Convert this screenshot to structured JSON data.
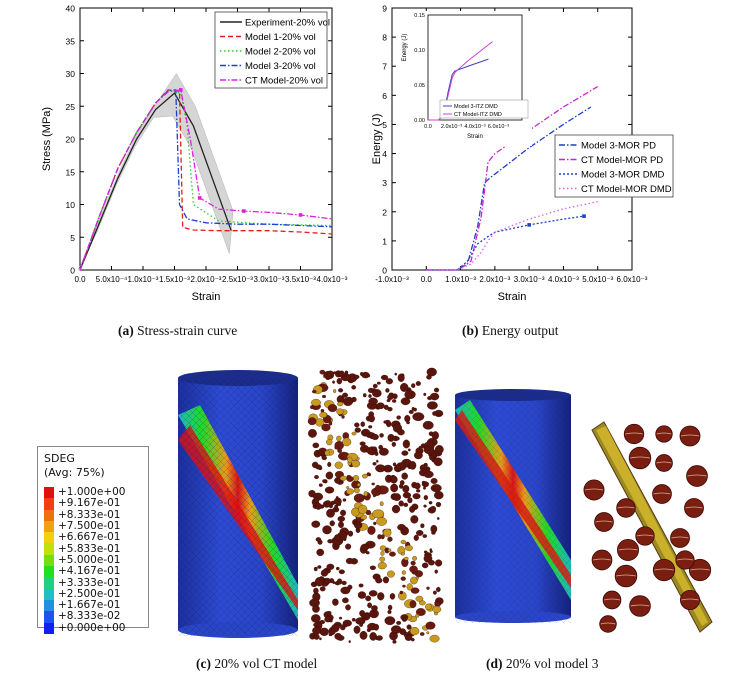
{
  "chart_data": [
    {
      "type": "line",
      "title": "",
      "xlabel": "Strain",
      "ylabel": "Stress (MPa)",
      "xlim": [
        0,
        0.004
      ],
      "ylim": [
        0,
        40
      ],
      "xticks": [
        "0.0",
        "5.0x10⁻⁴",
        "1.0x10⁻³",
        "1.5x10⁻³",
        "2.0x10⁻³",
        "2.5x10⁻³",
        "3.0x10⁻³",
        "3.5x10⁻³",
        "4.0x10⁻³"
      ],
      "yticks": [
        "0",
        "5",
        "10",
        "15",
        "20",
        "25",
        "30",
        "35",
        "40"
      ],
      "legend_position": "top-right",
      "series": [
        {
          "name": "Experiment-20% vol",
          "color": "#222222",
          "dash": "solid",
          "x": [
            0,
            0.0003,
            0.0006,
            0.0009,
            0.0012,
            0.0015,
            0.0018,
            0.0021,
            0.0024
          ],
          "y": [
            0,
            7,
            14,
            20,
            24.5,
            27,
            22,
            14,
            6
          ]
        },
        {
          "name": "Model 1-20% vol",
          "color": "#e0201b",
          "dash": "dash",
          "x": [
            0,
            0.0003,
            0.0006,
            0.0009,
            0.0012,
            0.0014,
            0.00158,
            0.00163,
            0.0018,
            0.0022,
            0.0026,
            0.003,
            0.0035,
            0.004
          ],
          "y": [
            0,
            8,
            15.5,
            21,
            25.5,
            27.5,
            27.3,
            6.5,
            6.1,
            6,
            6,
            6,
            5.8,
            5.5
          ]
        },
        {
          "name": "Model 2-20% vol",
          "color": "#33cc33",
          "dash": "dot",
          "x": [
            0,
            0.0003,
            0.0006,
            0.0009,
            0.0012,
            0.0014,
            0.0016,
            0.0017,
            0.0018,
            0.0022,
            0.003,
            0.004
          ],
          "y": [
            0,
            8,
            15.5,
            21,
            25.5,
            27.5,
            27,
            22,
            10,
            7.5,
            7,
            6.8
          ]
        },
        {
          "name": "Model 3-20% vol",
          "color": "#1f3fd0",
          "dash": "dashdot",
          "x": [
            0,
            0.0003,
            0.0006,
            0.0009,
            0.0012,
            0.0014,
            0.00152,
            0.00158,
            0.0017,
            0.002,
            0.0025,
            0.003,
            0.0035,
            0.004
          ],
          "y": [
            0,
            8,
            15.5,
            21,
            25.5,
            27.4,
            27.5,
            10,
            7.8,
            7.2,
            7,
            7,
            6.8,
            6.6
          ]
        },
        {
          "name": "CT Model-20% vol",
          "color": "#e020e0",
          "dash": "dashdotmark",
          "x": [
            0,
            0.0003,
            0.0006,
            0.0009,
            0.0012,
            0.0014,
            0.0016,
            0.00175,
            0.0019,
            0.0022,
            0.0026,
            0.003,
            0.0035,
            0.004
          ],
          "y": [
            0,
            8,
            15.5,
            21,
            25.5,
            27.2,
            27.5,
            20,
            11,
            9.3,
            9,
            8.8,
            8.4,
            7.8
          ]
        }
      ]
    },
    {
      "type": "line",
      "title": "",
      "xlabel": "Strain",
      "ylabel": "Energy (J)",
      "xlim": [
        -0.001,
        0.006
      ],
      "ylim": [
        0,
        9
      ],
      "xticks": [
        "-1.0x10⁻³",
        "0.0",
        "1.0x10⁻³",
        "2.0x10⁻³",
        "3.0x10⁻³",
        "4.0x10⁻³",
        "5.0x10⁻³",
        "6.0x10⁻³"
      ],
      "yticks": [
        "0",
        "1",
        "2",
        "3",
        "4",
        "5",
        "6",
        "7",
        "8",
        "9"
      ],
      "legend_position": "right",
      "series": [
        {
          "name": "Model 3-MOR PD",
          "color": "#1f3fd0",
          "dash": "dashdot",
          "x": [
            0,
            0.0009,
            0.0012,
            0.0015,
            0.0017,
            0.0019,
            0.003,
            0.004,
            0.0048
          ],
          "y": [
            0,
            0,
            0.2,
            1.5,
            3.0,
            3.2,
            4.2,
            5.0,
            5.6
          ]
        },
        {
          "name": "CT Model-MOR PD",
          "color": "#cc22cc",
          "dash": "dashdot",
          "x": [
            0,
            0.0009,
            0.0013,
            0.0016,
            0.0018,
            0.002,
            0.003,
            0.004,
            0.005
          ],
          "y": [
            0,
            0,
            0.3,
            1.8,
            3.7,
            4.0,
            4.8,
            5.6,
            6.3
          ]
        },
        {
          "name": "Model 3-MOR DMD",
          "color": "#1f3fd0",
          "dash": "dotmark",
          "x": [
            0,
            0.0009,
            0.0012,
            0.0015,
            0.0018,
            0.002,
            0.003,
            0.004,
            0.0046
          ],
          "y": [
            0,
            0,
            0.3,
            0.9,
            1.15,
            1.3,
            1.55,
            1.75,
            1.85
          ]
        },
        {
          "name": "CT Model-MOR DMD",
          "color": "#e060e0",
          "dash": "dot",
          "x": [
            0,
            0.0009,
            0.0013,
            0.0016,
            0.0018,
            0.002,
            0.003,
            0.004,
            0.005
          ],
          "y": [
            0,
            0,
            0.2,
            0.6,
            1.0,
            1.3,
            1.75,
            2.1,
            2.35
          ]
        }
      ],
      "inset": {
        "ylabel": "Energy (J)",
        "xlabel": "Strain",
        "xticks": [
          "0.0",
          "2.0x10⁻³",
          "4.0x10⁻³",
          "6.0x10⁻³"
        ],
        "yticks": [
          "0.00",
          "0.05",
          "0.10",
          "0.15"
        ],
        "xlim": [
          0,
          0.007
        ],
        "ylim": [
          0,
          0.15
        ],
        "series": [
          {
            "name": "Model 3-ITZ DMD",
            "color": "#4040c0",
            "x": [
              0,
              0.0008,
              0.0012,
              0.0015,
              0.0018,
              0.002,
              0.003,
              0.0045
            ],
            "y": [
              0,
              0,
              0.01,
              0.04,
              0.065,
              0.07,
              0.077,
              0.087
            ]
          },
          {
            "name": "CT Model-ITZ DMD",
            "color": "#d040d0",
            "x": [
              0,
              0.0008,
              0.0012,
              0.0015,
              0.0018,
              0.002,
              0.003,
              0.0048
            ],
            "y": [
              0,
              0,
              0.008,
              0.035,
              0.06,
              0.068,
              0.085,
              0.112
            ]
          }
        ]
      }
    }
  ],
  "captions": {
    "a_label": "(a)",
    "a_text": "Stress-strain curve",
    "b_label": "(b)",
    "b_text": "Energy output",
    "c_label": "(c)",
    "c_text": "20% vol CT model",
    "d_label": "(d)",
    "d_text": "20% vol model 3"
  },
  "contour_legend": {
    "title": "SDEG",
    "subtitle": "(Avg: 75%)",
    "values": [
      "+1.000e+00",
      "+9.167e-01",
      "+8.333e-01",
      "+7.500e-01",
      "+6.667e-01",
      "+5.833e-01",
      "+5.000e-01",
      "+4.167e-01",
      "+3.333e-01",
      "+2.500e-01",
      "+1.667e-01",
      "+8.333e-02",
      "+0.000e+00"
    ],
    "colors": [
      "#e01010",
      "#f04010",
      "#f07010",
      "#f0a010",
      "#f0d010",
      "#c0e010",
      "#70e010",
      "#20e020",
      "#20d080",
      "#20c0c0",
      "#2090e0",
      "#2050f0",
      "#1020f0"
    ]
  },
  "colors": {
    "band_fill": "#c8c8c8",
    "cylinder_blue": "#2a45c8",
    "damage_red": "#d81f12",
    "particle_brown": "#6a1a10"
  }
}
